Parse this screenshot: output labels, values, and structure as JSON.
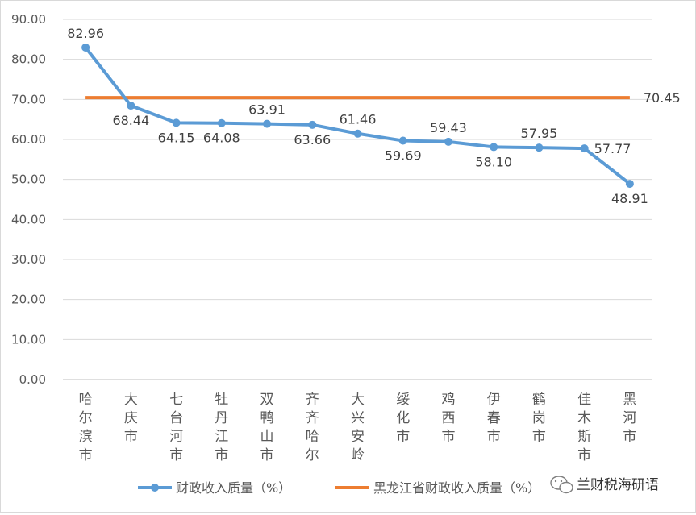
{
  "chart_data": {
    "type": "line",
    "categories": [
      "哈尔滨市",
      "大庆市",
      "七台河市",
      "牡丹江市",
      "双鸭山市",
      "齐齐哈尔",
      "大兴安岭",
      "绥化市",
      "鸡西市",
      "伊春市",
      "鹤岗市",
      "佳木斯市",
      "黑河市"
    ],
    "series": [
      {
        "name": "财政收入质量（%）",
        "color": "#5b9bd5",
        "values": [
          82.96,
          68.44,
          64.15,
          64.08,
          63.91,
          63.66,
          61.46,
          59.69,
          59.43,
          58.1,
          57.95,
          57.77,
          48.91
        ],
        "labels": [
          "82.96",
          "68.44",
          "64.15",
          "64.08",
          "63.91",
          "63.66",
          "61.46",
          "59.69",
          "59.43",
          "58.10",
          "57.95",
          "57.77",
          "48.91"
        ]
      },
      {
        "name": "黑龙江省财政收入质量（%）",
        "color": "#ed7d31",
        "value": 70.45,
        "label": "70.45"
      }
    ],
    "ylim": [
      0,
      90
    ],
    "yticks": [
      "0.00",
      "10.00",
      "20.00",
      "30.00",
      "40.00",
      "50.00",
      "60.00",
      "70.00",
      "80.00",
      "90.00"
    ],
    "grid": true,
    "legend_position": "bottom",
    "title": "",
    "xlabel": "",
    "ylabel": ""
  },
  "watermark": {
    "text": "兰财税海研语",
    "icon": "wechat-icon"
  }
}
